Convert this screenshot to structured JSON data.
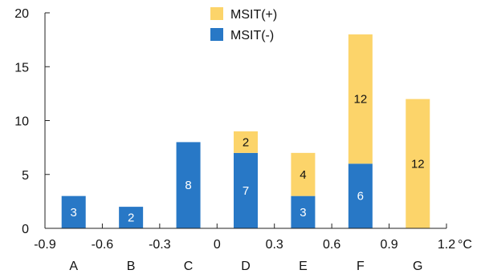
{
  "chart_data": {
    "type": "bar",
    "stacked": true,
    "title": "",
    "xlabel": "",
    "ylabel": "",
    "ylim": [
      0,
      20
    ],
    "y_ticks": [
      "0",
      "5",
      "10",
      "15",
      "20"
    ],
    "x_value_ticks": [
      "-0.9",
      "-0.6",
      "-0.3",
      "0",
      "0.3",
      "0.6",
      "0.9",
      "1.2"
    ],
    "x_unit": "°C",
    "categories": [
      "A",
      "B",
      "C",
      "D",
      "E",
      "F",
      "G"
    ],
    "series": [
      {
        "name": "MSIT(-)",
        "color": "#2878c6",
        "values": [
          3,
          2,
          8,
          7,
          3,
          6,
          0
        ],
        "labels": [
          "3",
          "2",
          "8",
          "7",
          "3",
          "6",
          ""
        ],
        "label_color": "#ffffff"
      },
      {
        "name": "MSIT(+)",
        "color": "#fcd46a",
        "values": [
          0,
          0,
          0,
          2,
          4,
          12,
          12
        ],
        "labels": [
          "",
          "",
          "",
          "2",
          "4",
          "12",
          "12"
        ],
        "label_color": "#111111"
      }
    ],
    "legend": {
      "position": "top-center",
      "order": [
        "MSIT(+)",
        "MSIT(-)"
      ]
    },
    "grid": false
  }
}
